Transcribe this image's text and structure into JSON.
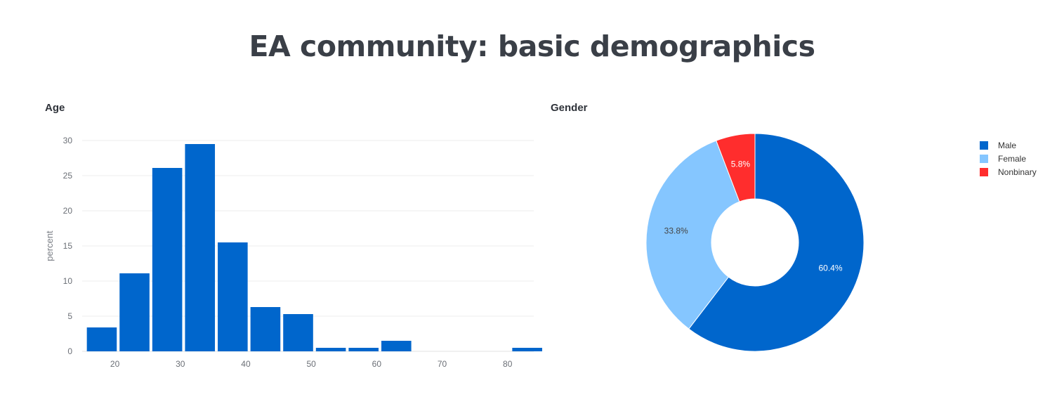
{
  "title": "EA community: basic demographics",
  "chart_data": [
    {
      "type": "bar",
      "title": "Age",
      "xlabel": "",
      "ylabel": "percent",
      "x": [
        18,
        23,
        28,
        33,
        38,
        43,
        48,
        53,
        58,
        63,
        68,
        73,
        78,
        83
      ],
      "values": [
        3.4,
        11.1,
        26.1,
        29.5,
        15.5,
        6.3,
        5.3,
        0.5,
        0.5,
        1.5,
        0,
        0,
        0,
        0.5
      ],
      "xticks": [
        20,
        30,
        40,
        50,
        60,
        70,
        80
      ],
      "yticks": [
        0,
        5,
        10,
        15,
        20,
        25,
        30
      ],
      "xlim": [
        15,
        84
      ],
      "ylim": [
        0,
        30
      ],
      "grid": true,
      "colors": {
        "bar": "#0066cc"
      }
    },
    {
      "type": "pie",
      "title": "Gender",
      "hole": true,
      "labels": [
        "Male",
        "Female",
        "Nonbinary"
      ],
      "values": [
        60.4,
        33.8,
        5.8
      ],
      "data_labels": [
        "60.4%",
        "33.8%",
        "5.8%"
      ],
      "colors": [
        "#0066cc",
        "#85c6ff",
        "#ff2d2d"
      ],
      "legend": "top-right"
    }
  ]
}
